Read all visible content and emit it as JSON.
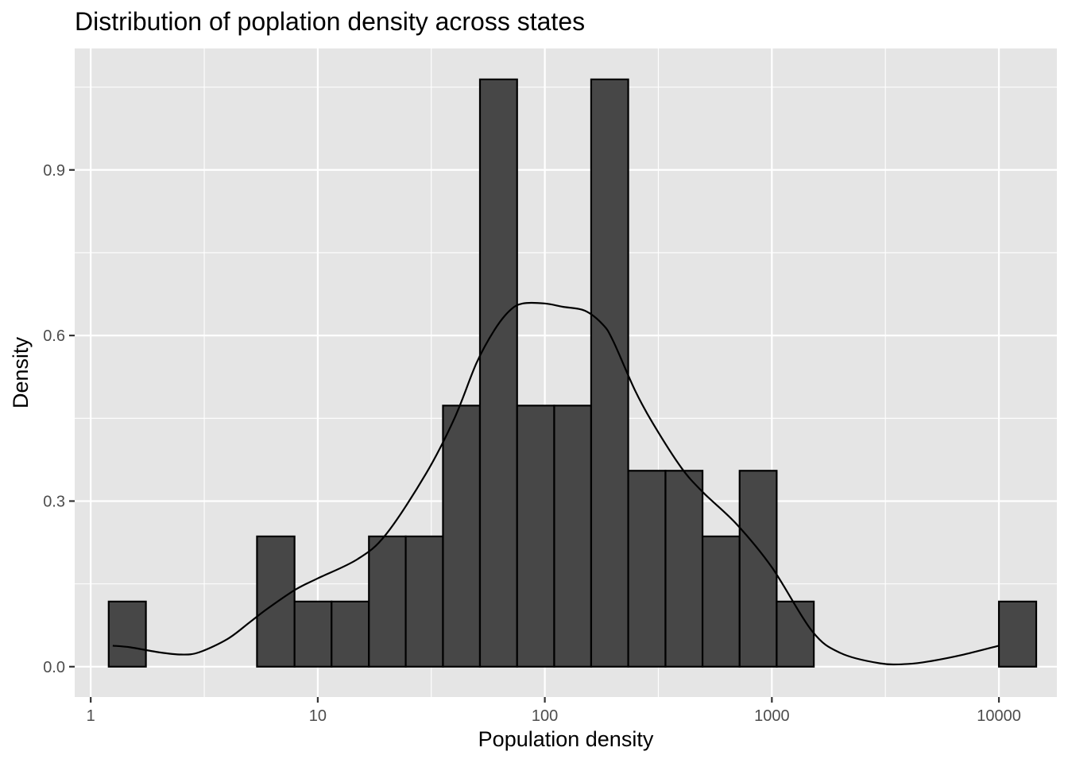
{
  "chart_data": {
    "type": "histogram",
    "title": "Distribution of poplation density across states",
    "xlabel": "Population density",
    "ylabel": "Density",
    "x_scale": "log10",
    "xlim": [
      0.85,
      18000
    ],
    "ylim": [
      -0.055,
      1.12
    ],
    "x_ticks": [
      {
        "value": 1,
        "label": "1"
      },
      {
        "value": 10,
        "label": "10"
      },
      {
        "value": 100,
        "label": "100"
      },
      {
        "value": 1000,
        "label": "1000"
      },
      {
        "value": 10000,
        "label": "10000"
      }
    ],
    "y_ticks": [
      {
        "value": 0,
        "label": "0.0"
      },
      {
        "value": 0.3,
        "label": "0.3"
      },
      {
        "value": 0.6,
        "label": "0.6"
      },
      {
        "value": 0.9,
        "label": "0.9"
      }
    ],
    "bin_edges": [
      1.2,
      1.75,
      2.6,
      3.7,
      5.4,
      7.9,
      11.5,
      16.8,
      24.4,
      35.6,
      51.8,
      75.5,
      110,
      160,
      233,
      340,
      495,
      721,
      1050,
      1530,
      2230,
      3250,
      4730,
      6890,
      10000,
      14600
    ],
    "bin_values": [
      0.118,
      0,
      0,
      0,
      0.236,
      0.118,
      0.118,
      0.236,
      0.236,
      0.473,
      1.064,
      0.473,
      0.473,
      1.064,
      0.355,
      0.355,
      0.236,
      0.355,
      0.118,
      0,
      0,
      0,
      0,
      0,
      0.118
    ],
    "density_curve": {
      "x": [
        1.25,
        1.5,
        2,
        2.5,
        3,
        4,
        5,
        6,
        8,
        10,
        15,
        20,
        30,
        40,
        50,
        60,
        70,
        80,
        100,
        120,
        150,
        180,
        200,
        250,
        300,
        400,
        500,
        700,
        1000,
        1500,
        2000,
        3000,
        4000,
        5000,
        7000,
        10000
      ],
      "y": [
        0.038,
        0.035,
        0.026,
        0.022,
        0.026,
        0.05,
        0.08,
        0.105,
        0.14,
        0.16,
        0.195,
        0.24,
        0.35,
        0.45,
        0.55,
        0.61,
        0.645,
        0.658,
        0.658,
        0.652,
        0.645,
        0.62,
        0.59,
        0.5,
        0.44,
        0.36,
        0.315,
        0.258,
        0.18,
        0.065,
        0.025,
        0.006,
        0.005,
        0.01,
        0.022,
        0.038
      ]
    },
    "colors": {
      "panel_background": "#e5e5e5",
      "grid": "#ffffff",
      "bar_fill": "#474747",
      "bar_outline": "#000000",
      "line": "#000000"
    },
    "grid": true,
    "legend": "none"
  }
}
